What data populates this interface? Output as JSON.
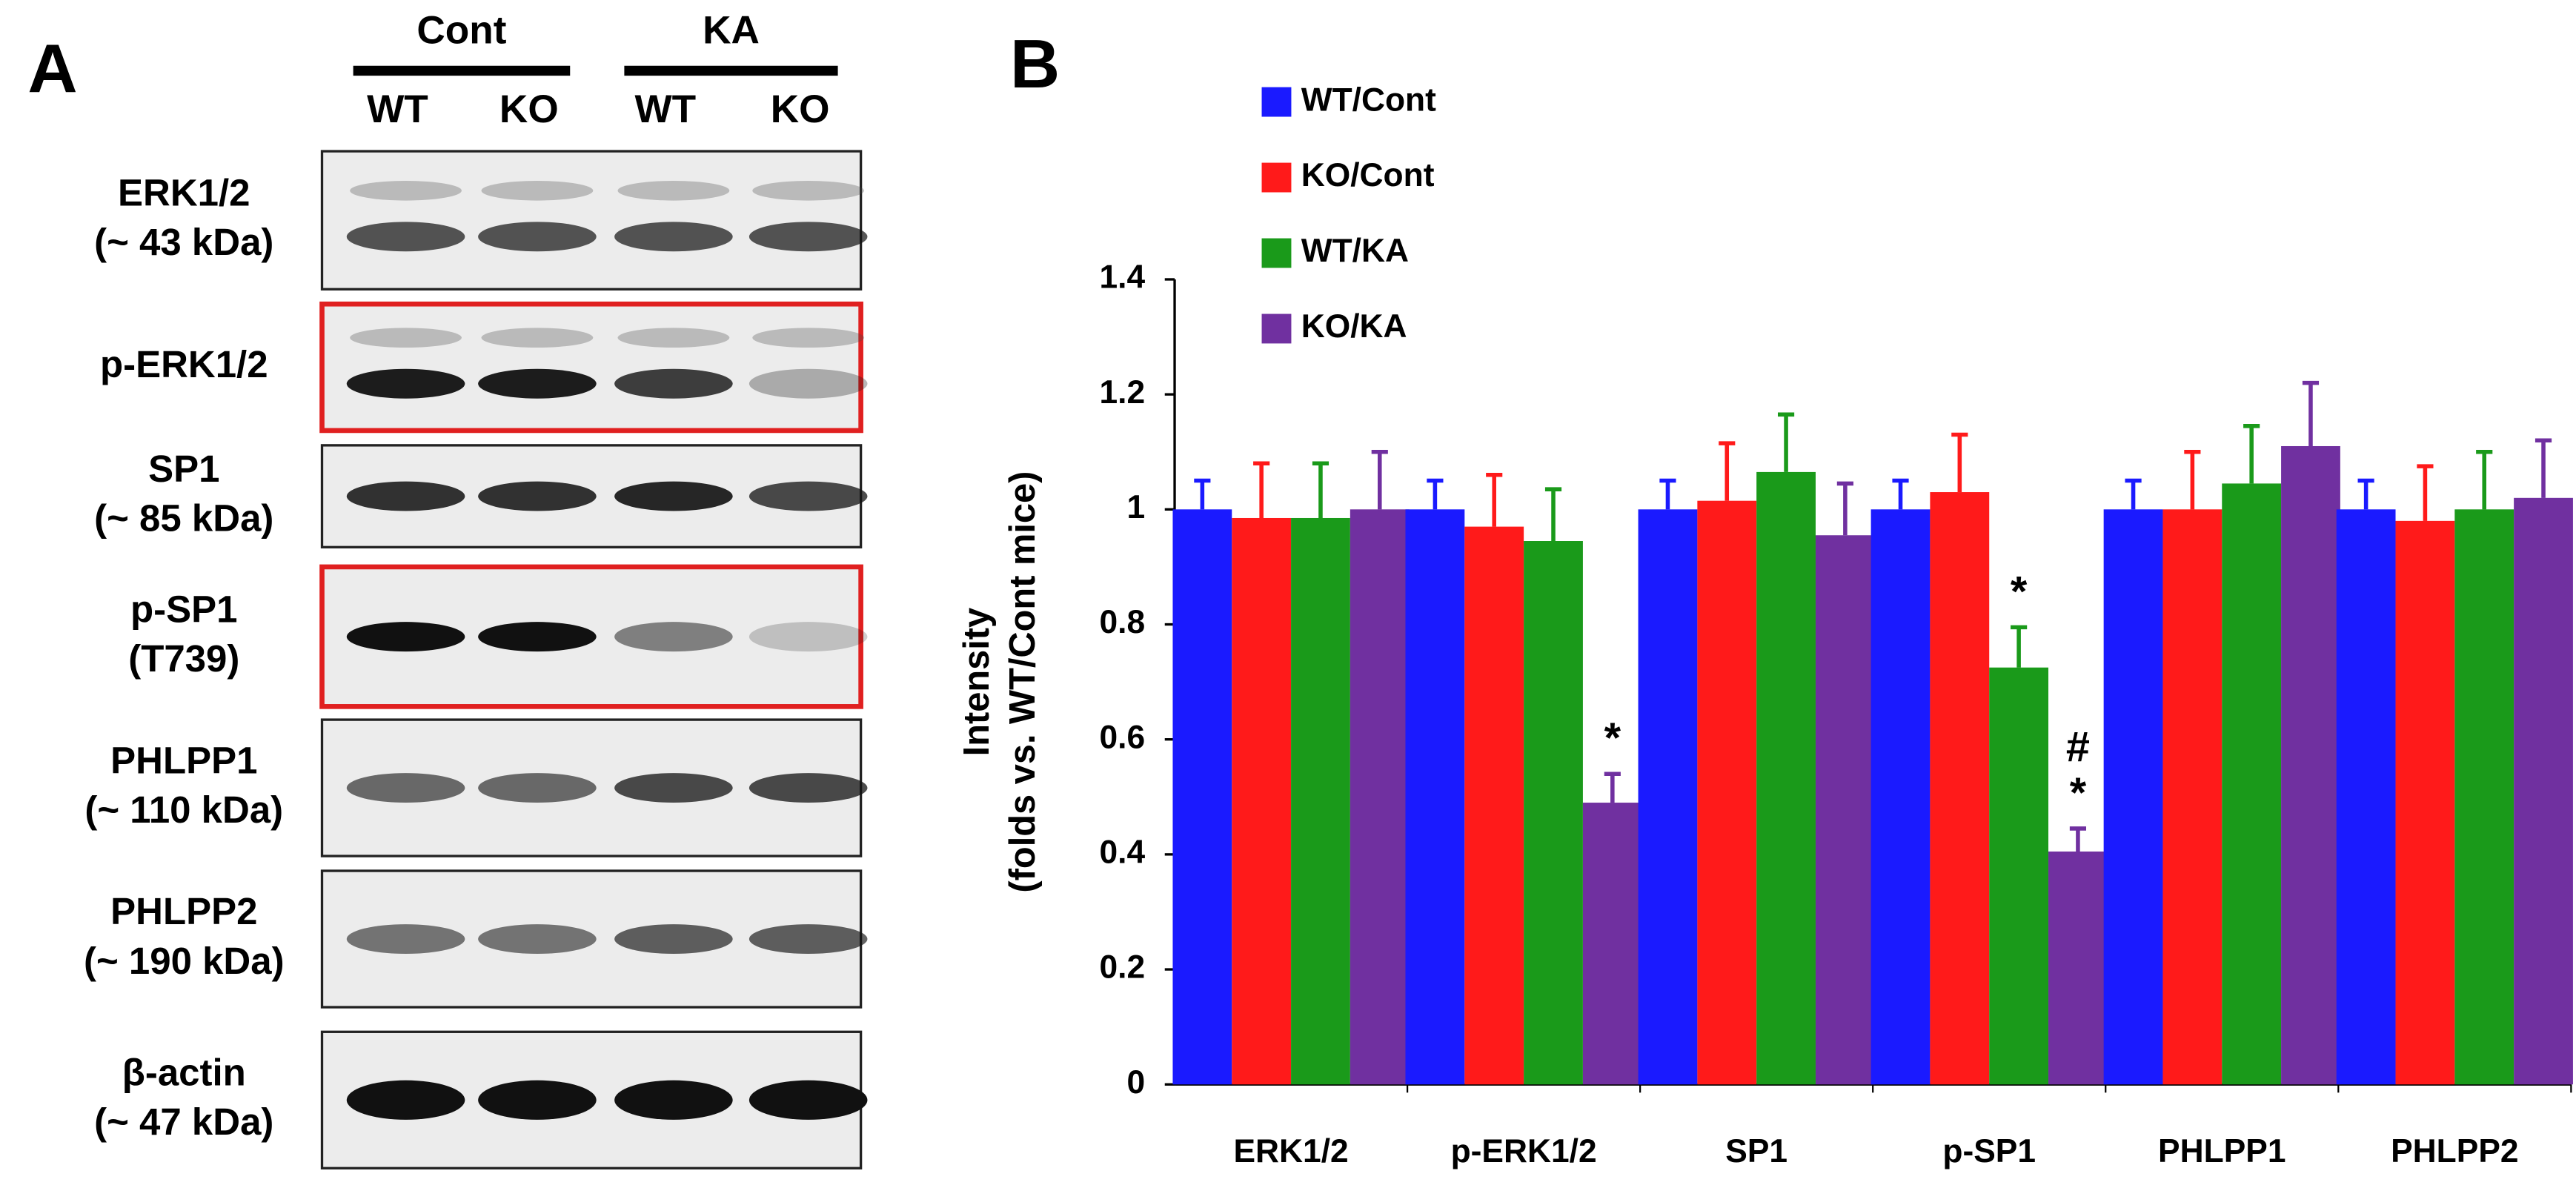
{
  "panel_a": {
    "label": "A",
    "groups": [
      {
        "name": "Cont",
        "lanes": [
          "WT",
          "KO"
        ]
      },
      {
        "name": "KA",
        "lanes": [
          "WT",
          "KO"
        ]
      }
    ],
    "rows": [
      {
        "name": "ERK1/2",
        "size": "(~ 43 kDa)"
      },
      {
        "name": "p-ERK1/2"
      },
      {
        "name": "SP1",
        "size": "(~ 85 kDa)"
      },
      {
        "name": "p-SP1",
        "size": "(T739)"
      },
      {
        "name": "PHLPP1",
        "size": "(~ 110 kDa)"
      },
      {
        "name": "PHLPP2",
        "size": "(~ 190 kDa)"
      },
      {
        "name": "β-actin",
        "size": "(~ 47 kDa)"
      }
    ]
  },
  "chart_data": {
    "type": "bar",
    "panel_label": "B",
    "ylabel": [
      "Intensity",
      "(folds vs. WT/Cont mice)"
    ],
    "categories": [
      "ERK1/2",
      "p-ERK1/2",
      "SP1",
      "p-SP1",
      "PHLPP1",
      "PHLPP2"
    ],
    "series": [
      {
        "name": "WT/Cont",
        "color": "#1a1aff",
        "values": [
          1.0,
          1.0,
          1.0,
          1.0,
          1.0,
          1.0
        ],
        "errors": [
          0.05,
          0.05,
          0.05,
          0.05,
          0.05,
          0.05
        ]
      },
      {
        "name": "KO/Cont",
        "color": "#ff1a1a",
        "values": [
          0.985,
          0.97,
          1.015,
          1.03,
          1.0,
          0.98
        ],
        "errors": [
          0.095,
          0.09,
          0.1,
          0.1,
          0.1,
          0.095
        ]
      },
      {
        "name": "WT/KA",
        "color": "#1a9a1a",
        "values": [
          0.985,
          0.945,
          1.065,
          0.725,
          1.045,
          1.0
        ],
        "errors": [
          0.095,
          0.09,
          0.1,
          0.07,
          0.1,
          0.1
        ],
        "annotations": [
          null,
          null,
          null,
          "*",
          null,
          null
        ]
      },
      {
        "name": "KO/KA",
        "color": "#7030a0",
        "values": [
          1.0,
          0.49,
          0.955,
          0.405,
          1.11,
          1.02
        ],
        "errors": [
          0.1,
          0.05,
          0.09,
          0.04,
          0.11,
          0.1
        ],
        "annotations": [
          null,
          "*",
          null,
          [
            "#",
            "*"
          ],
          null,
          null
        ]
      }
    ],
    "ylim": [
      0,
      1.4
    ],
    "yticks": [
      0,
      0.2,
      0.4,
      0.6,
      0.8,
      1,
      1.2,
      1.4
    ]
  }
}
